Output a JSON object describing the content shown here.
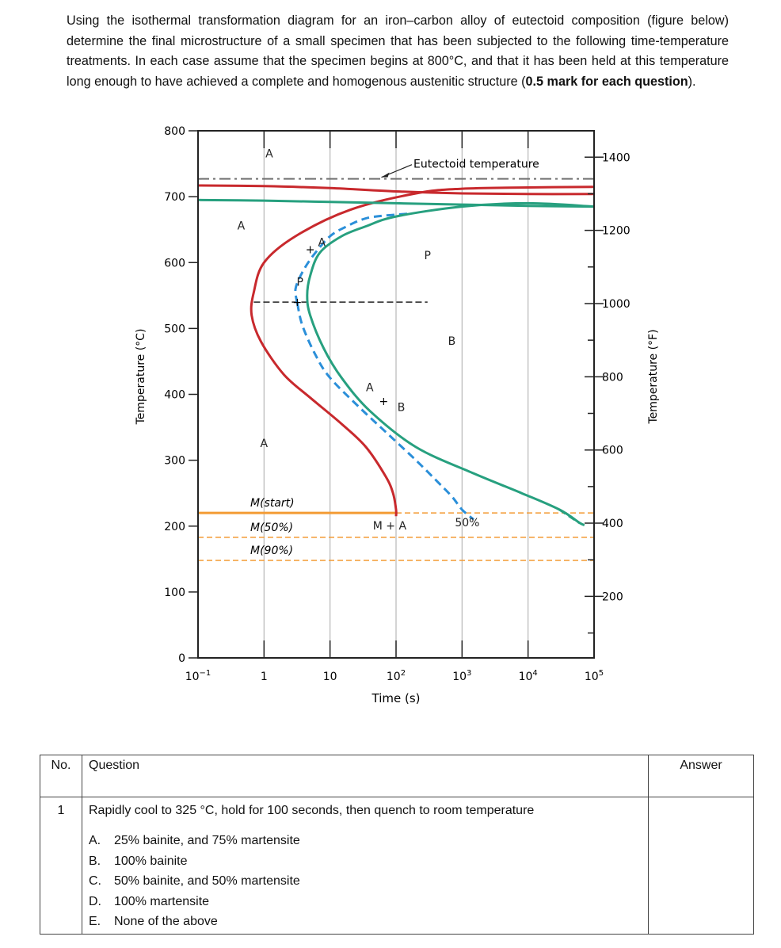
{
  "intro": {
    "text_before_bold": "Using the isothermal transformation diagram for an iron–carbon alloy of eutectoid composition (figure below) determine the final microstructure of a small specimen that has been subjected to the following time-temperature treatments. In each case assume that the specimen begins at 800°C, and that it has been held at this temperature long enough to have achieved a complete and homogenous austenitic structure (",
    "bold": "0.5 mark for each question",
    "text_after_bold": ")."
  },
  "chart_data": {
    "type": "line",
    "title": "",
    "xlabel": "Time (s)",
    "ylabel_left": "Temperature (°C)",
    "ylabel_right": "Temperature (°F)",
    "xscale": "log",
    "xlim": [
      0.1,
      100000
    ],
    "ylim": [
      0,
      800
    ],
    "x_tick_labels": [
      {
        "base": "10",
        "exp": "−1"
      },
      {
        "base": "1",
        "exp": ""
      },
      {
        "base": "10",
        "exp": ""
      },
      {
        "base": "10",
        "exp": "2"
      },
      {
        "base": "10",
        "exp": "3"
      },
      {
        "base": "10",
        "exp": "4"
      },
      {
        "base": "10",
        "exp": "5"
      }
    ],
    "y_ticks_left": [
      0,
      100,
      200,
      300,
      400,
      500,
      600,
      700,
      800
    ],
    "y_ticks_right": [
      200,
      400,
      600,
      800,
      1000,
      1200,
      1400
    ],
    "grid": true,
    "colors": {
      "start_curve": "#c8292d",
      "fifty_curve": "#2b8fd9",
      "finish_curve": "#27a07f",
      "martensite": "#f39b34",
      "eutectoid": "#707070",
      "grid": "#b8b8b8"
    },
    "series": [
      {
        "name": "",
        "style": "solid-red",
        "points": [
          [
            0.1,
            717
          ],
          [
            1,
            716
          ],
          [
            10,
            713
          ],
          [
            100,
            708
          ],
          [
            1000,
            705
          ],
          [
            10000,
            704
          ],
          [
            100000,
            704
          ]
        ]
      },
      {
        "name": "",
        "style": "solid-red",
        "points": [
          [
            100,
            215
          ],
          [
            100,
            225
          ],
          [
            90,
            250
          ],
          [
            70,
            275
          ],
          [
            35,
            320
          ],
          [
            15,
            355
          ],
          [
            5,
            395
          ],
          [
            2,
            430
          ],
          [
            0.9,
            480
          ],
          [
            0.65,
            520
          ],
          [
            0.7,
            555
          ],
          [
            1,
            600
          ],
          [
            3,
            640
          ],
          [
            20,
            680
          ],
          [
            200,
            705
          ],
          [
            1000,
            712
          ],
          [
            10000,
            714
          ],
          [
            100000,
            715
          ]
        ]
      },
      {
        "name": "",
        "style": "dashed-blue",
        "points": [
          [
            3.2,
            538
          ],
          [
            3.0,
            560
          ],
          [
            3.8,
            585
          ],
          [
            5.5,
            610
          ],
          [
            10,
            640
          ],
          [
            18,
            655
          ],
          [
            30,
            665
          ],
          [
            50,
            670
          ],
          [
            150,
            674
          ]
        ]
      },
      {
        "name": "",
        "style": "dashed-blue",
        "points": [
          [
            3.2,
            538
          ],
          [
            3.8,
            505
          ],
          [
            6,
            460
          ],
          [
            10,
            425
          ],
          [
            28,
            380
          ],
          [
            75,
            340
          ],
          [
            200,
            300
          ],
          [
            400,
            270
          ],
          [
            700,
            245
          ],
          [
            1000,
            225
          ],
          [
            1500,
            210
          ]
        ]
      },
      {
        "name": "",
        "style": "solid-green",
        "points": [
          [
            0.1,
            695
          ],
          [
            1,
            694
          ],
          [
            10,
            692
          ],
          [
            100,
            690
          ],
          [
            1000,
            688
          ],
          [
            10000,
            686
          ],
          [
            100000,
            685
          ]
        ]
      },
      {
        "name": "",
        "style": "solid-green",
        "points": [
          [
            100000,
            685
          ],
          [
            10000,
            690
          ],
          [
            1000,
            685
          ],
          [
            100,
            670
          ],
          [
            35,
            655
          ],
          [
            15,
            640
          ],
          [
            7,
            615
          ],
          [
            5,
            580
          ],
          [
            4.5,
            550
          ],
          [
            5,
            520
          ],
          [
            8,
            470
          ],
          [
            15,
            425
          ],
          [
            40,
            375
          ],
          [
            200,
            320
          ],
          [
            1500,
            280
          ],
          [
            8000,
            250
          ],
          [
            30000,
            225
          ],
          [
            60000,
            205
          ]
        ]
      },
      {
        "name": "",
        "style": "dashed-green",
        "points": [
          [
            30000,
            225
          ],
          [
            60000,
            205
          ],
          [
            80000,
            200
          ]
        ]
      }
    ],
    "horizontal_lines": [
      {
        "label": "Eutectoid temperature",
        "y": 727,
        "style": "dash-dot"
      },
      {
        "label": "M(start)",
        "y": 220,
        "style": "solid-orange"
      },
      {
        "label": "M(50%)",
        "y": 183,
        "style": "dashed-orange"
      },
      {
        "label": "M(90%)",
        "y": 148,
        "style": "dashed-orange"
      },
      {
        "label": "",
        "y": 540,
        "style": "dashed-black",
        "x_range": [
          0.7,
          300
        ]
      }
    ],
    "region_labels": [
      {
        "text": "A",
        "x": 1.2,
        "y": 760
      },
      {
        "text": "A",
        "x": 0.45,
        "y": 650
      },
      {
        "text": "A",
        "x": 1,
        "y": 320
      },
      {
        "text": "P",
        "x": 300,
        "y": 605
      },
      {
        "text": "B",
        "x": 700,
        "y": 475
      },
      {
        "text": "M + A",
        "x": 80,
        "y": 195
      },
      {
        "text": "50%",
        "x": 1200,
        "y": 200
      },
      {
        "text": "P",
        "x": 3.5,
        "y": 565
      },
      {
        "text": "A",
        "x": 7.5,
        "y": 625
      },
      {
        "text": "A",
        "x": 40,
        "y": 405
      },
      {
        "text": "B",
        "x": 120,
        "y": 375
      }
    ],
    "annotations": [
      {
        "text": "Eutectoid temperature",
        "arrow_to": [
          60,
          727
        ]
      }
    ],
    "marks": [
      {
        "symbol": "+",
        "x": 5,
        "y": 620
      },
      {
        "symbol": "+",
        "x": 3.2,
        "y": 540
      },
      {
        "symbol": "+",
        "x": 65,
        "y": 390
      }
    ]
  },
  "table": {
    "headers": {
      "no": "No.",
      "question": "Question",
      "answer": "Answer"
    },
    "rows": [
      {
        "no": "1",
        "question": "Rapidly cool to 325 °C, hold for 100 seconds, then quench to room temperature",
        "answer": "",
        "options": [
          {
            "letter": "A.",
            "text": "25% bainite, and 75% martensite"
          },
          {
            "letter": "B.",
            "text": "100% bainite"
          },
          {
            "letter": "C.",
            "text": "50% bainite, and 50% martensite"
          },
          {
            "letter": "D.",
            "text": "100% martensite"
          },
          {
            "letter": "E.",
            "text": "None of the above"
          }
        ]
      }
    ]
  }
}
